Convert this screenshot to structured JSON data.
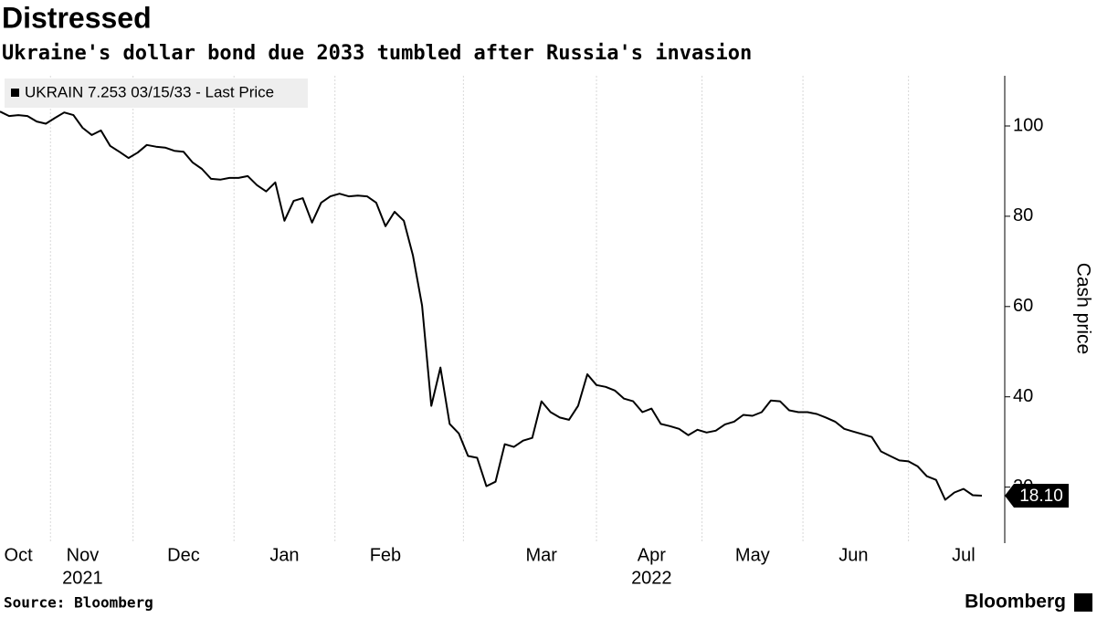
{
  "chart_data": {
    "type": "line",
    "title": "Distressed",
    "subtitle": "Ukraine's dollar bond due 2033 tumbled after Russia's invasion",
    "ylabel": "Cash price",
    "source": "Source: Bloomberg",
    "brand": "Bloomberg",
    "years": [
      "2021",
      "2022"
    ],
    "categories": [
      null,
      null,
      "Oct",
      null,
      null,
      null,
      null,
      null,
      null,
      "Nov",
      null,
      null,
      null,
      null,
      null,
      null,
      null,
      null,
      null,
      null,
      "Dec",
      null,
      null,
      null,
      null,
      null,
      null,
      null,
      null,
      null,
      null,
      "Jan",
      null,
      null,
      null,
      null,
      null,
      null,
      null,
      null,
      null,
      null,
      "Feb",
      null,
      null,
      null,
      null,
      null,
      null,
      null,
      null,
      null,
      null,
      null,
      null,
      null,
      null,
      null,
      null,
      "Mar",
      null,
      null,
      null,
      null,
      null,
      null,
      null,
      null,
      null,
      null,
      null,
      "Apr",
      null,
      null,
      null,
      null,
      null,
      null,
      null,
      null,
      null,
      null,
      "May",
      null,
      null,
      null,
      null,
      null,
      null,
      null,
      null,
      null,
      null,
      "Jun",
      null,
      null,
      null,
      null,
      null,
      null,
      null,
      null,
      null,
      null,
      null,
      "Jul",
      null,
      null
    ],
    "series": [
      {
        "name": "UKRAIN 7.253 03/15/33 - Last Price",
        "color": "#000000",
        "values": [
          103.2,
          102.2,
          102.4,
          102.2,
          101.0,
          100.5,
          101.8,
          103.0,
          102.4,
          99.6,
          98.0,
          99.0,
          95.6,
          94.3,
          92.9,
          94.1,
          95.8,
          95.4,
          95.2,
          94.5,
          94.3,
          91.9,
          90.5,
          88.3,
          88.1,
          88.5,
          88.5,
          88.9,
          86.9,
          85.5,
          87.5,
          79.0,
          83.4,
          84.0,
          78.6,
          83.0,
          84.4,
          85.0,
          84.4,
          84.6,
          84.4,
          83.0,
          77.8,
          81.0,
          79.0,
          71.3,
          60.2,
          38.0,
          46.5,
          34.0,
          31.9,
          26.9,
          26.5,
          20.2,
          21.2,
          29.5,
          28.9,
          30.3,
          30.9,
          39.0,
          36.6,
          35.4,
          34.9,
          38.0,
          45.0,
          42.6,
          42.2,
          41.4,
          39.6,
          39.0,
          36.6,
          37.4,
          34.0,
          33.5,
          32.9,
          31.5,
          32.7,
          32.1,
          32.5,
          33.9,
          34.5,
          36.0,
          35.8,
          36.6,
          39.2,
          39.0,
          37.0,
          36.6,
          36.6,
          36.2,
          35.4,
          34.5,
          32.9,
          32.3,
          31.7,
          31.1,
          27.9,
          26.9,
          25.9,
          25.7,
          24.6,
          22.4,
          21.6,
          17.2,
          18.8,
          19.6,
          18.2,
          18.1
        ],
        "value_labels": [
          null,
          null,
          null,
          null,
          null,
          null,
          null,
          null,
          null,
          null,
          null,
          null,
          null,
          null,
          null,
          null,
          null,
          null,
          null,
          null,
          null,
          null,
          null,
          null,
          null,
          null,
          null,
          null,
          null,
          null,
          null,
          null,
          null,
          null,
          null,
          null,
          null,
          null,
          null,
          null,
          null,
          null,
          null,
          null,
          null,
          null,
          null,
          null,
          null,
          null,
          null,
          null,
          null,
          null,
          null,
          null,
          null,
          null,
          null,
          null,
          null,
          null,
          null,
          null,
          null,
          null,
          null,
          null,
          null,
          null,
          null,
          null,
          null,
          null,
          null,
          null,
          null,
          null,
          null,
          null,
          null,
          null,
          null,
          null,
          null,
          null,
          null,
          null,
          null,
          null,
          null,
          null,
          null,
          null,
          null,
          null,
          null,
          null,
          null,
          null,
          null,
          null,
          null,
          null,
          null,
          null,
          null,
          "18.10"
        ]
      }
    ],
    "ylim": [
      9,
      111
    ],
    "yticks": [
      20,
      40,
      60,
      80,
      100
    ],
    "grid": true
  }
}
